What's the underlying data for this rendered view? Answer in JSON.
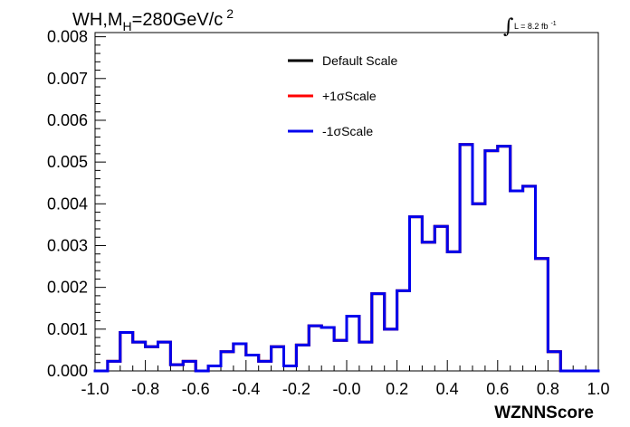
{
  "chart_data": {
    "type": "line",
    "style": "step-histogram",
    "title_main": "WH,M",
    "title_sub": "H",
    "title_rest": "=280GeV/c",
    "title_sup": "2",
    "lumi_symbol": "∫",
    "lumi_text": "L = 8.2 fb",
    "lumi_sup": "-1",
    "xlabel": "WZNNScore",
    "ylabel": "",
    "xlim": [
      -1.0,
      1.0
    ],
    "ylim": [
      0,
      0.0081
    ],
    "x_ticks": [
      "-1.0",
      "-0.8",
      "-0.6",
      "-0.4",
      "-0.2",
      "-0.0",
      "0.2",
      "0.4",
      "0.6",
      "0.8",
      "1.0"
    ],
    "y_ticks": [
      "0.000",
      "0.001",
      "0.002",
      "0.003",
      "0.004",
      "0.005",
      "0.006",
      "0.007",
      "0.008"
    ],
    "legend_position": "top-center",
    "bin_edges_start": -1.0,
    "bin_width": 0.05,
    "series": [
      {
        "name": "Default Scale",
        "color": "#000000",
        "values": [
          0.0,
          0.00023,
          0.00092,
          0.00069,
          0.00058,
          0.00069,
          0.00015,
          0.00023,
          0.0,
          0.00012,
          0.00046,
          0.00065,
          0.00038,
          0.00023,
          0.00058,
          0.00012,
          0.00062,
          0.00108,
          0.00104,
          0.00073,
          0.00131,
          0.00069,
          0.00185,
          0.001,
          0.00192,
          0.00369,
          0.00308,
          0.00346,
          0.00285,
          0.00542,
          0.004,
          0.00527,
          0.00538,
          0.00431,
          0.00442,
          0.00269,
          0.00046,
          0.0,
          0.0,
          0.0
        ]
      },
      {
        "name": "+1σScale",
        "color": "#ff0000",
        "values": [
          0.0,
          0.00023,
          0.00092,
          0.00069,
          0.00058,
          0.00069,
          0.00015,
          0.00023,
          0.0,
          0.00012,
          0.00046,
          0.00065,
          0.00038,
          0.00023,
          0.00058,
          0.00012,
          0.00062,
          0.00108,
          0.00104,
          0.00073,
          0.00131,
          0.00069,
          0.00185,
          0.001,
          0.00192,
          0.00369,
          0.00308,
          0.00346,
          0.00285,
          0.00542,
          0.004,
          0.00527,
          0.00538,
          0.00431,
          0.00442,
          0.00269,
          0.00046,
          0.0,
          0.0,
          0.0
        ]
      },
      {
        "name": "-1σScale",
        "color": "#0000ee",
        "values": [
          0.0,
          0.00023,
          0.00092,
          0.00069,
          0.00058,
          0.00069,
          0.00015,
          0.00023,
          0.0,
          0.00012,
          0.00046,
          0.00065,
          0.00038,
          0.00023,
          0.00058,
          0.00012,
          0.00062,
          0.00108,
          0.00104,
          0.00073,
          0.00131,
          0.00069,
          0.00185,
          0.001,
          0.00192,
          0.00369,
          0.00308,
          0.00346,
          0.00285,
          0.00542,
          0.004,
          0.00527,
          0.00538,
          0.00431,
          0.00442,
          0.00269,
          0.00046,
          0.0,
          0.0,
          0.0
        ]
      }
    ]
  }
}
